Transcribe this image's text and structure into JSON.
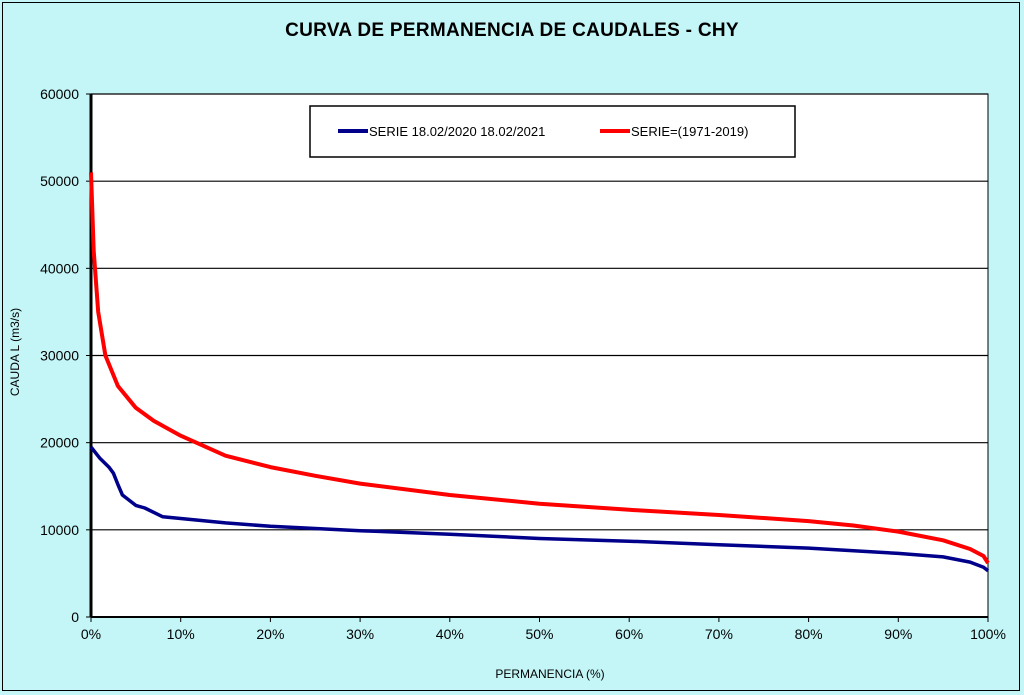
{
  "chart_data": {
    "type": "line",
    "title": "CURVA DE PERMANENCIA DE CAUDALES - CHY",
    "xlabel": "PERMANENCIA (%)",
    "ylabel": "CAUDA L (m3/s)",
    "xlim": [
      0,
      100
    ],
    "ylim": [
      0,
      60000
    ],
    "xticks": [
      "0%",
      "10%",
      "20%",
      "30%",
      "40%",
      "50%",
      "60%",
      "70%",
      "80%",
      "90%",
      "100%"
    ],
    "yticks": [
      "0",
      "10000",
      "20000",
      "30000",
      "40000",
      "50000",
      "60000"
    ],
    "grid": "horizontal",
    "legend": "top-center",
    "series": [
      {
        "name": "SERIE 18.02/2020 18.02/2021",
        "color": "#00008b",
        "x": [
          0,
          1,
          2,
          2.5,
          3,
          3.5,
          5,
          6,
          8,
          10,
          15,
          20,
          30,
          40,
          50,
          60,
          70,
          80,
          90,
          95,
          98,
          99.5,
          100
        ],
        "y": [
          19500,
          18200,
          17200,
          16500,
          15200,
          14000,
          12800,
          12500,
          11500,
          11300,
          10800,
          10400,
          9900,
          9500,
          9000,
          8700,
          8300,
          7900,
          7300,
          6900,
          6300,
          5700,
          5300
        ]
      },
      {
        "name": "SERIE=(1971-2019)",
        "color": "#ff0000",
        "x": [
          0,
          0.3,
          0.8,
          1.6,
          3,
          5,
          7,
          10,
          15,
          20,
          25,
          30,
          40,
          50,
          60,
          70,
          80,
          85,
          90,
          95,
          98,
          99.5,
          100
        ],
        "y": [
          51000,
          42000,
          35000,
          30000,
          26500,
          24000,
          22500,
          20800,
          18500,
          17200,
          16200,
          15300,
          14000,
          13000,
          12300,
          11700,
          11000,
          10500,
          9800,
          8800,
          7800,
          7000,
          6200
        ]
      }
    ]
  }
}
